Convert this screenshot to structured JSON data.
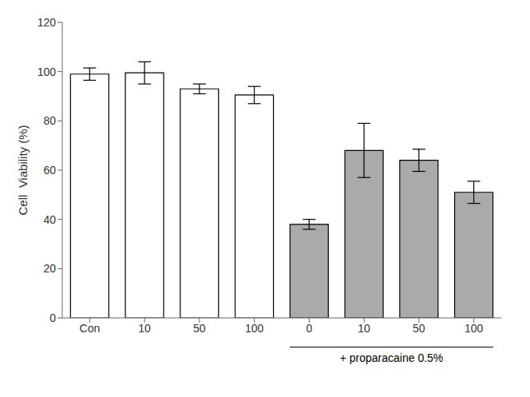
{
  "chart_data": {
    "type": "bar",
    "categories": [
      "Con",
      "10",
      "50",
      "100",
      "0",
      "10",
      "50",
      "100"
    ],
    "values": [
      99.0,
      99.5,
      93.0,
      90.5,
      38.0,
      68.0,
      64.0,
      51.0
    ],
    "errors": [
      2.5,
      4.5,
      2.0,
      3.5,
      2.0,
      11.0,
      4.5,
      4.5
    ],
    "colors": [
      "#ffffff",
      "#ffffff",
      "#ffffff",
      "#ffffff",
      "#aaaaaa",
      "#aaaaaa",
      "#aaaaaa",
      "#aaaaaa"
    ],
    "ylabel": "Cell  Viability (%)",
    "ylim": [
      0,
      120
    ],
    "yticks": [
      0,
      20,
      40,
      60,
      80,
      100,
      120
    ],
    "annotation": "+ proparacaine 0.5%"
  }
}
